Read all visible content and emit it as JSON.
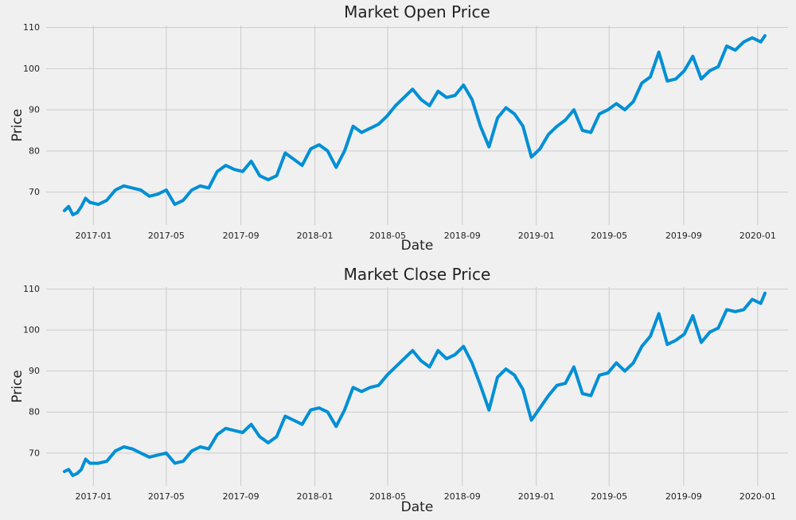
{
  "colors": {
    "background": "#f0f0f0",
    "plot_background": "#f0f0f0",
    "grid": "#cbcbcb",
    "line": "#008fd5",
    "text": "#222222"
  },
  "chart_data": [
    {
      "type": "line",
      "title": "Market Open Price",
      "xlabel": "Date",
      "ylabel": "Price",
      "grid": true,
      "legend": "none",
      "xlim": [
        "2016-10-15",
        "2020-02-20"
      ],
      "ylim": [
        62,
        110.5
      ],
      "x_ticks": [
        "2017-01-01",
        "2017-05-01",
        "2017-09-01",
        "2018-01-01",
        "2018-05-01",
        "2018-09-01",
        "2019-01-01",
        "2019-05-01",
        "2019-09-01",
        "2020-01-01"
      ],
      "x_tick_labels": [
        "2017-01",
        "2017-05",
        "2017-09",
        "2018-01",
        "2018-05",
        "2018-09",
        "2019-01",
        "2019-05",
        "2019-09",
        "2020-01"
      ],
      "y_ticks": [
        70,
        80,
        90,
        100,
        110
      ],
      "y_tick_labels": [
        "70",
        "80",
        "90",
        "100",
        "110"
      ],
      "series": [
        {
          "name": "Open",
          "x": [
            "2016-11-14",
            "2016-11-21",
            "2016-11-28",
            "2016-12-05",
            "2016-12-12",
            "2016-12-19",
            "2016-12-26",
            "2017-01-09",
            "2017-01-23",
            "2017-02-06",
            "2017-02-20",
            "2017-03-06",
            "2017-03-20",
            "2017-04-03",
            "2017-04-17",
            "2017-05-01",
            "2017-05-15",
            "2017-05-29",
            "2017-06-12",
            "2017-06-26",
            "2017-07-10",
            "2017-07-24",
            "2017-08-07",
            "2017-08-21",
            "2017-09-04",
            "2017-09-18",
            "2017-10-02",
            "2017-10-16",
            "2017-10-30",
            "2017-11-13",
            "2017-11-27",
            "2017-12-11",
            "2017-12-25",
            "2018-01-08",
            "2018-01-22",
            "2018-02-05",
            "2018-02-19",
            "2018-03-05",
            "2018-03-19",
            "2018-04-02",
            "2018-04-16",
            "2018-04-30",
            "2018-05-14",
            "2018-05-28",
            "2018-06-11",
            "2018-06-25",
            "2018-07-09",
            "2018-07-23",
            "2018-08-06",
            "2018-08-20",
            "2018-09-03",
            "2018-09-17",
            "2018-10-01",
            "2018-10-15",
            "2018-10-29",
            "2018-11-12",
            "2018-11-26",
            "2018-12-10",
            "2018-12-24",
            "2019-01-07",
            "2019-01-21",
            "2019-02-04",
            "2019-02-18",
            "2019-03-04",
            "2019-03-18",
            "2019-04-01",
            "2019-04-15",
            "2019-04-29",
            "2019-05-13",
            "2019-05-27",
            "2019-06-10",
            "2019-06-24",
            "2019-07-08",
            "2019-07-22",
            "2019-08-05",
            "2019-08-19",
            "2019-09-02",
            "2019-09-16",
            "2019-09-30",
            "2019-10-14",
            "2019-10-28",
            "2019-11-11",
            "2019-11-25",
            "2019-12-09",
            "2019-12-23",
            "2020-01-06",
            "2020-01-13"
          ],
          "y": [
            65.5,
            66.5,
            64.5,
            65.0,
            66.5,
            68.5,
            67.5,
            67.0,
            68.0,
            70.5,
            71.5,
            71.0,
            70.5,
            69.0,
            69.5,
            70.5,
            67.0,
            68.0,
            70.5,
            71.5,
            71.0,
            75.0,
            76.5,
            75.5,
            75.0,
            77.5,
            74.0,
            73.0,
            74.0,
            79.5,
            78.0,
            76.5,
            80.5,
            81.5,
            80.0,
            76.0,
            80.0,
            86.0,
            84.5,
            85.5,
            86.5,
            88.5,
            91.0,
            93.0,
            95.0,
            92.5,
            91.0,
            94.5,
            93.0,
            93.5,
            96.0,
            92.5,
            86.0,
            81.0,
            88.0,
            90.5,
            89.0,
            86.0,
            78.5,
            80.5,
            84.0,
            86.0,
            87.5,
            90.0,
            85.0,
            84.5,
            89.0,
            90.0,
            91.5,
            90.0,
            92.0,
            96.5,
            98.0,
            104.0,
            97.0,
            97.5,
            99.5,
            103.0,
            97.5,
            99.5,
            100.5,
            105.5,
            104.5,
            106.5,
            107.5,
            106.5,
            108.0
          ]
        }
      ]
    },
    {
      "type": "line",
      "title": "Market Close Price",
      "xlabel": "Date",
      "ylabel": "Price",
      "grid": true,
      "legend": "none",
      "xlim": [
        "2016-10-15",
        "2020-02-20"
      ],
      "ylim": [
        62,
        110.5
      ],
      "x_ticks": [
        "2017-01-01",
        "2017-05-01",
        "2017-09-01",
        "2018-01-01",
        "2018-05-01",
        "2018-09-01",
        "2019-01-01",
        "2019-05-01",
        "2019-09-01",
        "2020-01-01"
      ],
      "x_tick_labels": [
        "2017-01",
        "2017-05",
        "2017-09",
        "2018-01",
        "2018-05",
        "2018-09",
        "2019-01",
        "2019-05",
        "2019-09",
        "2020-01"
      ],
      "y_ticks": [
        70,
        80,
        90,
        100,
        110
      ],
      "y_tick_labels": [
        "70",
        "80",
        "90",
        "100",
        "110"
      ],
      "series": [
        {
          "name": "Close",
          "x": [
            "2016-11-14",
            "2016-11-21",
            "2016-11-28",
            "2016-12-05",
            "2016-12-12",
            "2016-12-19",
            "2016-12-26",
            "2017-01-09",
            "2017-01-23",
            "2017-02-06",
            "2017-02-20",
            "2017-03-06",
            "2017-03-20",
            "2017-04-03",
            "2017-04-17",
            "2017-05-01",
            "2017-05-15",
            "2017-05-29",
            "2017-06-12",
            "2017-06-26",
            "2017-07-10",
            "2017-07-24",
            "2017-08-07",
            "2017-08-21",
            "2017-09-04",
            "2017-09-18",
            "2017-10-02",
            "2017-10-16",
            "2017-10-30",
            "2017-11-13",
            "2017-11-27",
            "2017-12-11",
            "2017-12-25",
            "2018-01-08",
            "2018-01-22",
            "2018-02-05",
            "2018-02-19",
            "2018-03-05",
            "2018-03-19",
            "2018-04-02",
            "2018-04-16",
            "2018-04-30",
            "2018-05-14",
            "2018-05-28",
            "2018-06-11",
            "2018-06-25",
            "2018-07-09",
            "2018-07-23",
            "2018-08-06",
            "2018-08-20",
            "2018-09-03",
            "2018-09-17",
            "2018-10-01",
            "2018-10-15",
            "2018-10-29",
            "2018-11-12",
            "2018-11-26",
            "2018-12-10",
            "2018-12-24",
            "2019-01-07",
            "2019-01-21",
            "2019-02-04",
            "2019-02-18",
            "2019-03-04",
            "2019-03-18",
            "2019-04-01",
            "2019-04-15",
            "2019-04-29",
            "2019-05-13",
            "2019-05-27",
            "2019-06-10",
            "2019-06-24",
            "2019-07-08",
            "2019-07-22",
            "2019-08-05",
            "2019-08-19",
            "2019-09-02",
            "2019-09-16",
            "2019-09-30",
            "2019-10-14",
            "2019-10-28",
            "2019-11-11",
            "2019-11-25",
            "2019-12-09",
            "2019-12-23",
            "2020-01-06",
            "2020-01-13"
          ],
          "y": [
            65.5,
            66.0,
            64.5,
            65.0,
            66.0,
            68.5,
            67.5,
            67.5,
            68.0,
            70.5,
            71.5,
            71.0,
            70.0,
            69.0,
            69.5,
            70.0,
            67.5,
            68.0,
            70.5,
            71.5,
            71.0,
            74.5,
            76.0,
            75.5,
            75.0,
            77.0,
            74.0,
            72.5,
            74.0,
            79.0,
            78.0,
            77.0,
            80.5,
            81.0,
            80.0,
            76.5,
            80.5,
            86.0,
            85.0,
            86.0,
            86.5,
            89.0,
            91.0,
            93.0,
            95.0,
            92.5,
            91.0,
            95.0,
            93.0,
            94.0,
            96.0,
            92.0,
            86.5,
            80.5,
            88.5,
            90.5,
            89.0,
            85.5,
            78.0,
            81.0,
            84.0,
            86.5,
            87.0,
            91.0,
            84.5,
            84.0,
            89.0,
            89.5,
            92.0,
            90.0,
            92.0,
            96.0,
            98.5,
            104.0,
            96.5,
            97.5,
            99.0,
            103.5,
            97.0,
            99.5,
            100.5,
            105.0,
            104.5,
            105.0,
            107.5,
            106.5,
            109.0
          ]
        }
      ]
    }
  ]
}
